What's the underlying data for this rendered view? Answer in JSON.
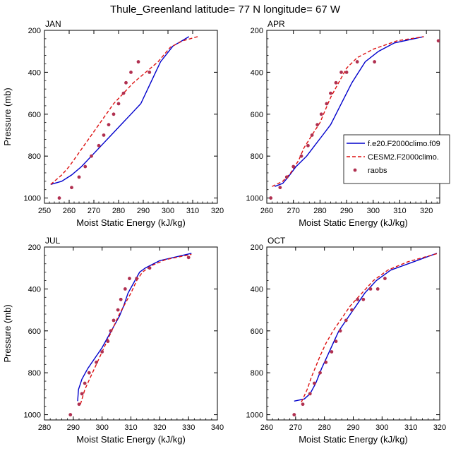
{
  "figure": {
    "title": "Thule_Greenland  latitude= 77 N longitude= 67 W"
  },
  "colors": {
    "model1": "#0000cc",
    "model2": "#dd1111",
    "obs": "#b03050"
  },
  "legend": {
    "placement": "right of APR panel",
    "entries": [
      {
        "label": "f.e20.F2000climo.f09",
        "style": "solid-line",
        "color": "#0000cc"
      },
      {
        "label": "CESM2.F2000climo.",
        "style": "dashed-line",
        "color": "#dd1111"
      },
      {
        "label": "raobs",
        "style": "marker",
        "color": "#b03050"
      }
    ]
  },
  "chart_data": [
    {
      "type": "line",
      "title": "JAN",
      "xlabel": "Moist Static Energy (kJ/kg)",
      "ylabel": "Pressure (mb)",
      "xlim": [
        250,
        320
      ],
      "ylim": [
        1025,
        200
      ],
      "y_inverted": true,
      "xticks": [
        250,
        260,
        270,
        280,
        290,
        300,
        310,
        320
      ],
      "yticks": [
        200,
        400,
        600,
        800,
        1000
      ],
      "series": [
        {
          "name": "f.e20.F2000climo.f09",
          "style": "solid",
          "color": "#0000cc",
          "x": [
            252.5,
            257,
            261,
            265,
            269,
            273,
            277,
            281,
            285,
            289,
            293,
            297,
            302,
            308.5
          ],
          "y": [
            935,
            920,
            890,
            850,
            800,
            750,
            700,
            650,
            600,
            550,
            450,
            350,
            275,
            230
          ]
        },
        {
          "name": "CESM2.F2000climo.",
          "style": "dashed",
          "color": "#dd1111",
          "x": [
            252.5,
            257,
            260,
            263,
            266,
            269,
            272,
            275,
            278,
            282,
            286,
            291,
            296,
            301,
            306,
            312
          ],
          "y": [
            935,
            890,
            850,
            800,
            750,
            700,
            650,
            600,
            550,
            500,
            450,
            400,
            350,
            280,
            250,
            230
          ]
        },
        {
          "name": "raobs",
          "style": "markers",
          "color": "#b03050",
          "x": [
            256,
            261,
            264,
            266.5,
            269,
            272,
            274,
            276,
            278,
            280,
            282,
            283,
            285,
            288,
            292.5
          ],
          "y": [
            1000,
            950,
            900,
            850,
            800,
            750,
            700,
            650,
            600,
            550,
            500,
            450,
            400,
            350,
            400
          ]
        }
      ]
    },
    {
      "type": "line",
      "title": "APR",
      "xlabel": "Moist Static Energy (kJ/kg)",
      "ylabel": "",
      "xlim": [
        260,
        325
      ],
      "ylim": [
        1025,
        200
      ],
      "y_inverted": true,
      "xticks": [
        260,
        270,
        280,
        290,
        300,
        310,
        320
      ],
      "yticks": [
        200,
        400,
        600,
        800,
        1000
      ],
      "series": [
        {
          "name": "f.e20.F2000climo.f09",
          "style": "solid",
          "color": "#0000cc",
          "x": [
            263,
            266,
            268,
            271,
            275,
            278,
            281,
            284,
            286,
            288,
            292,
            297,
            302,
            308,
            319
          ],
          "y": [
            945,
            930,
            900,
            850,
            800,
            750,
            700,
            650,
            600,
            550,
            450,
            350,
            300,
            260,
            230
          ]
        },
        {
          "name": "CESM2.F2000climo.",
          "style": "dashed",
          "color": "#dd1111",
          "x": [
            262,
            266,
            269,
            272,
            274,
            276,
            278,
            280,
            282,
            284,
            287,
            290,
            294,
            300,
            309,
            319
          ],
          "y": [
            945,
            920,
            880,
            820,
            760,
            720,
            680,
            640,
            580,
            520,
            450,
            380,
            330,
            290,
            250,
            230
          ]
        },
        {
          "name": "raobs",
          "style": "markers",
          "color": "#b03050",
          "x": [
            261.5,
            265,
            267.5,
            270,
            273,
            275.5,
            277,
            279,
            280.5,
            282.5,
            284,
            286,
            288,
            290,
            294,
            300.5,
            324.5
          ],
          "y": [
            1000,
            950,
            900,
            850,
            800,
            750,
            700,
            650,
            600,
            550,
            500,
            450,
            400,
            400,
            350,
            350,
            250
          ]
        }
      ]
    },
    {
      "type": "line",
      "title": "JUL",
      "xlabel": "Moist Static Energy (kJ/kg)",
      "ylabel": "Pressure (mb)",
      "xlim": [
        280,
        340
      ],
      "ylim": [
        1025,
        200
      ],
      "y_inverted": true,
      "xticks": [
        280,
        290,
        300,
        310,
        320,
        330,
        340
      ],
      "yticks": [
        200,
        400,
        600,
        800,
        1000
      ],
      "series": [
        {
          "name": "f.e20.F2000climo.f09",
          "style": "solid",
          "color": "#0000cc",
          "x": [
            291.5,
            291.8,
            293,
            295,
            297.5,
            300,
            302,
            304,
            306,
            307.5,
            309,
            311,
            313,
            315,
            320,
            331
          ],
          "y": [
            935,
            880,
            830,
            780,
            730,
            680,
            630,
            580,
            530,
            480,
            420,
            370,
            320,
            300,
            265,
            230
          ]
        },
        {
          "name": "CESM2.F2000climo.",
          "style": "dashed",
          "color": "#dd1111",
          "x": [
            292.5,
            294,
            296,
            298,
            300,
            302,
            304,
            306,
            308,
            310,
            312,
            314,
            317,
            322,
            331
          ],
          "y": [
            950,
            880,
            820,
            760,
            700,
            640,
            580,
            520,
            470,
            420,
            360,
            320,
            290,
            260,
            235
          ]
        },
        {
          "name": "raobs",
          "style": "markers",
          "color": "#b03050",
          "x": [
            289,
            292,
            293,
            294,
            295.5,
            298,
            300,
            302,
            303,
            304,
            305.5,
            306.5,
            308,
            309.5,
            312,
            316.5,
            330
          ],
          "y": [
            1000,
            950,
            900,
            850,
            800,
            750,
            700,
            650,
            600,
            550,
            500,
            450,
            400,
            350,
            350,
            300,
            250
          ]
        }
      ]
    },
    {
      "type": "line",
      "title": "OCT",
      "xlabel": "Moist Static Energy (kJ/kg)",
      "ylabel": "",
      "xlim": [
        260,
        320
      ],
      "ylim": [
        1025,
        200
      ],
      "y_inverted": true,
      "xticks": [
        260,
        270,
        280,
        290,
        300,
        310,
        320
      ],
      "yticks": [
        200,
        400,
        600,
        800,
        1000
      ],
      "series": [
        {
          "name": "f.e20.F2000climo.f09",
          "style": "solid",
          "color": "#0000cc",
          "x": [
            269.5,
            273,
            275,
            277,
            279,
            281,
            283,
            285,
            288,
            291,
            294,
            298,
            303,
            311,
            319
          ],
          "y": [
            935,
            925,
            900,
            850,
            780,
            720,
            660,
            600,
            540,
            480,
            420,
            360,
            310,
            270,
            230
          ]
        },
        {
          "name": "CESM2.F2000climo.",
          "style": "dashed",
          "color": "#dd1111",
          "x": [
            272,
            274,
            275.5,
            277,
            278.5,
            280.5,
            283,
            286,
            289,
            293,
            297,
            302,
            309,
            319
          ],
          "y": [
            940,
            880,
            820,
            770,
            720,
            660,
            600,
            540,
            480,
            420,
            360,
            310,
            270,
            232
          ]
        },
        {
          "name": "raobs",
          "style": "markers",
          "color": "#b03050",
          "x": [
            269.5,
            272.5,
            275,
            276.5,
            278.5,
            280.5,
            282.5,
            284,
            285.5,
            287.5,
            289.5,
            291.5,
            293.5,
            296,
            298.5,
            301
          ],
          "y": [
            1000,
            950,
            900,
            850,
            800,
            750,
            700,
            650,
            600,
            550,
            500,
            450,
            450,
            400,
            400,
            350
          ]
        }
      ]
    }
  ]
}
